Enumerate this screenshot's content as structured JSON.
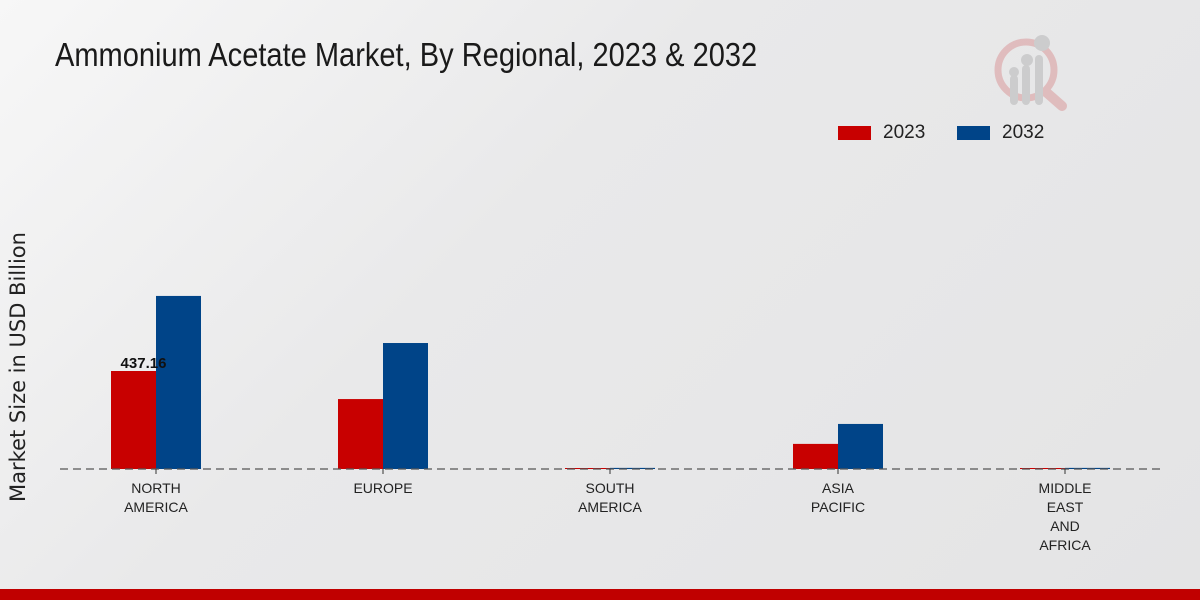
{
  "chart_data": {
    "type": "bar",
    "title": "Ammonium Acetate Market, By Regional, 2023 & 2032",
    "xlabel": "",
    "ylabel": "Market Size in USD Billion",
    "categories": [
      [
        "NORTH",
        "AMERICA"
      ],
      [
        "EUROPE"
      ],
      [
        "SOUTH",
        "AMERICA"
      ],
      [
        "ASIA",
        "PACIFIC"
      ],
      [
        "MIDDLE",
        "EAST",
        "AND",
        "AFRICA"
      ]
    ],
    "series": [
      {
        "name": "2023",
        "color": "#c80000",
        "values": [
          437.16,
          312,
          2,
          112,
          2
        ]
      },
      {
        "name": "2032",
        "color": "#004488",
        "values": [
          772,
          562,
          5,
          201,
          5
        ]
      }
    ],
    "data_labels": [
      {
        "series": 0,
        "index": 0,
        "text": "437.16"
      }
    ],
    "ylim": [
      0,
      1000
    ],
    "grid": false,
    "legend_position": "top-right"
  }
}
